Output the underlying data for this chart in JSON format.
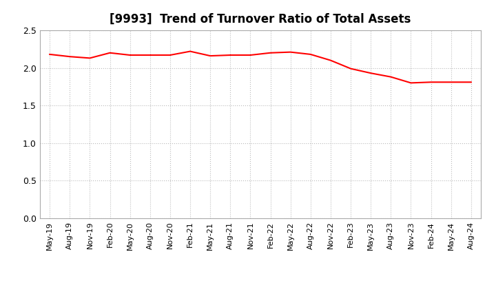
{
  "title": "[9993]  Trend of Turnover Ratio of Total Assets",
  "line_color": "#FF0000",
  "line_width": 1.5,
  "background_color": "#FFFFFF",
  "grid_color": "#BBBBBB",
  "ylim": [
    0.0,
    2.5
  ],
  "yticks": [
    0.0,
    0.5,
    1.0,
    1.5,
    2.0,
    2.5
  ],
  "labels": [
    "May-19",
    "Aug-19",
    "Nov-19",
    "Feb-20",
    "May-20",
    "Aug-20",
    "Nov-20",
    "Feb-21",
    "May-21",
    "Aug-21",
    "Nov-21",
    "Feb-22",
    "May-22",
    "Aug-22",
    "Nov-22",
    "Feb-23",
    "May-23",
    "Aug-23",
    "Nov-23",
    "Feb-24",
    "May-24",
    "Aug-24"
  ],
  "values": [
    2.18,
    2.15,
    2.13,
    2.2,
    2.17,
    2.17,
    2.17,
    2.22,
    2.16,
    2.17,
    2.17,
    2.2,
    2.21,
    2.18,
    2.1,
    1.99,
    1.93,
    1.88,
    1.8,
    1.81,
    1.81,
    1.81
  ],
  "title_fontsize": 12,
  "tick_fontsize": 8,
  "ytick_fontsize": 9
}
